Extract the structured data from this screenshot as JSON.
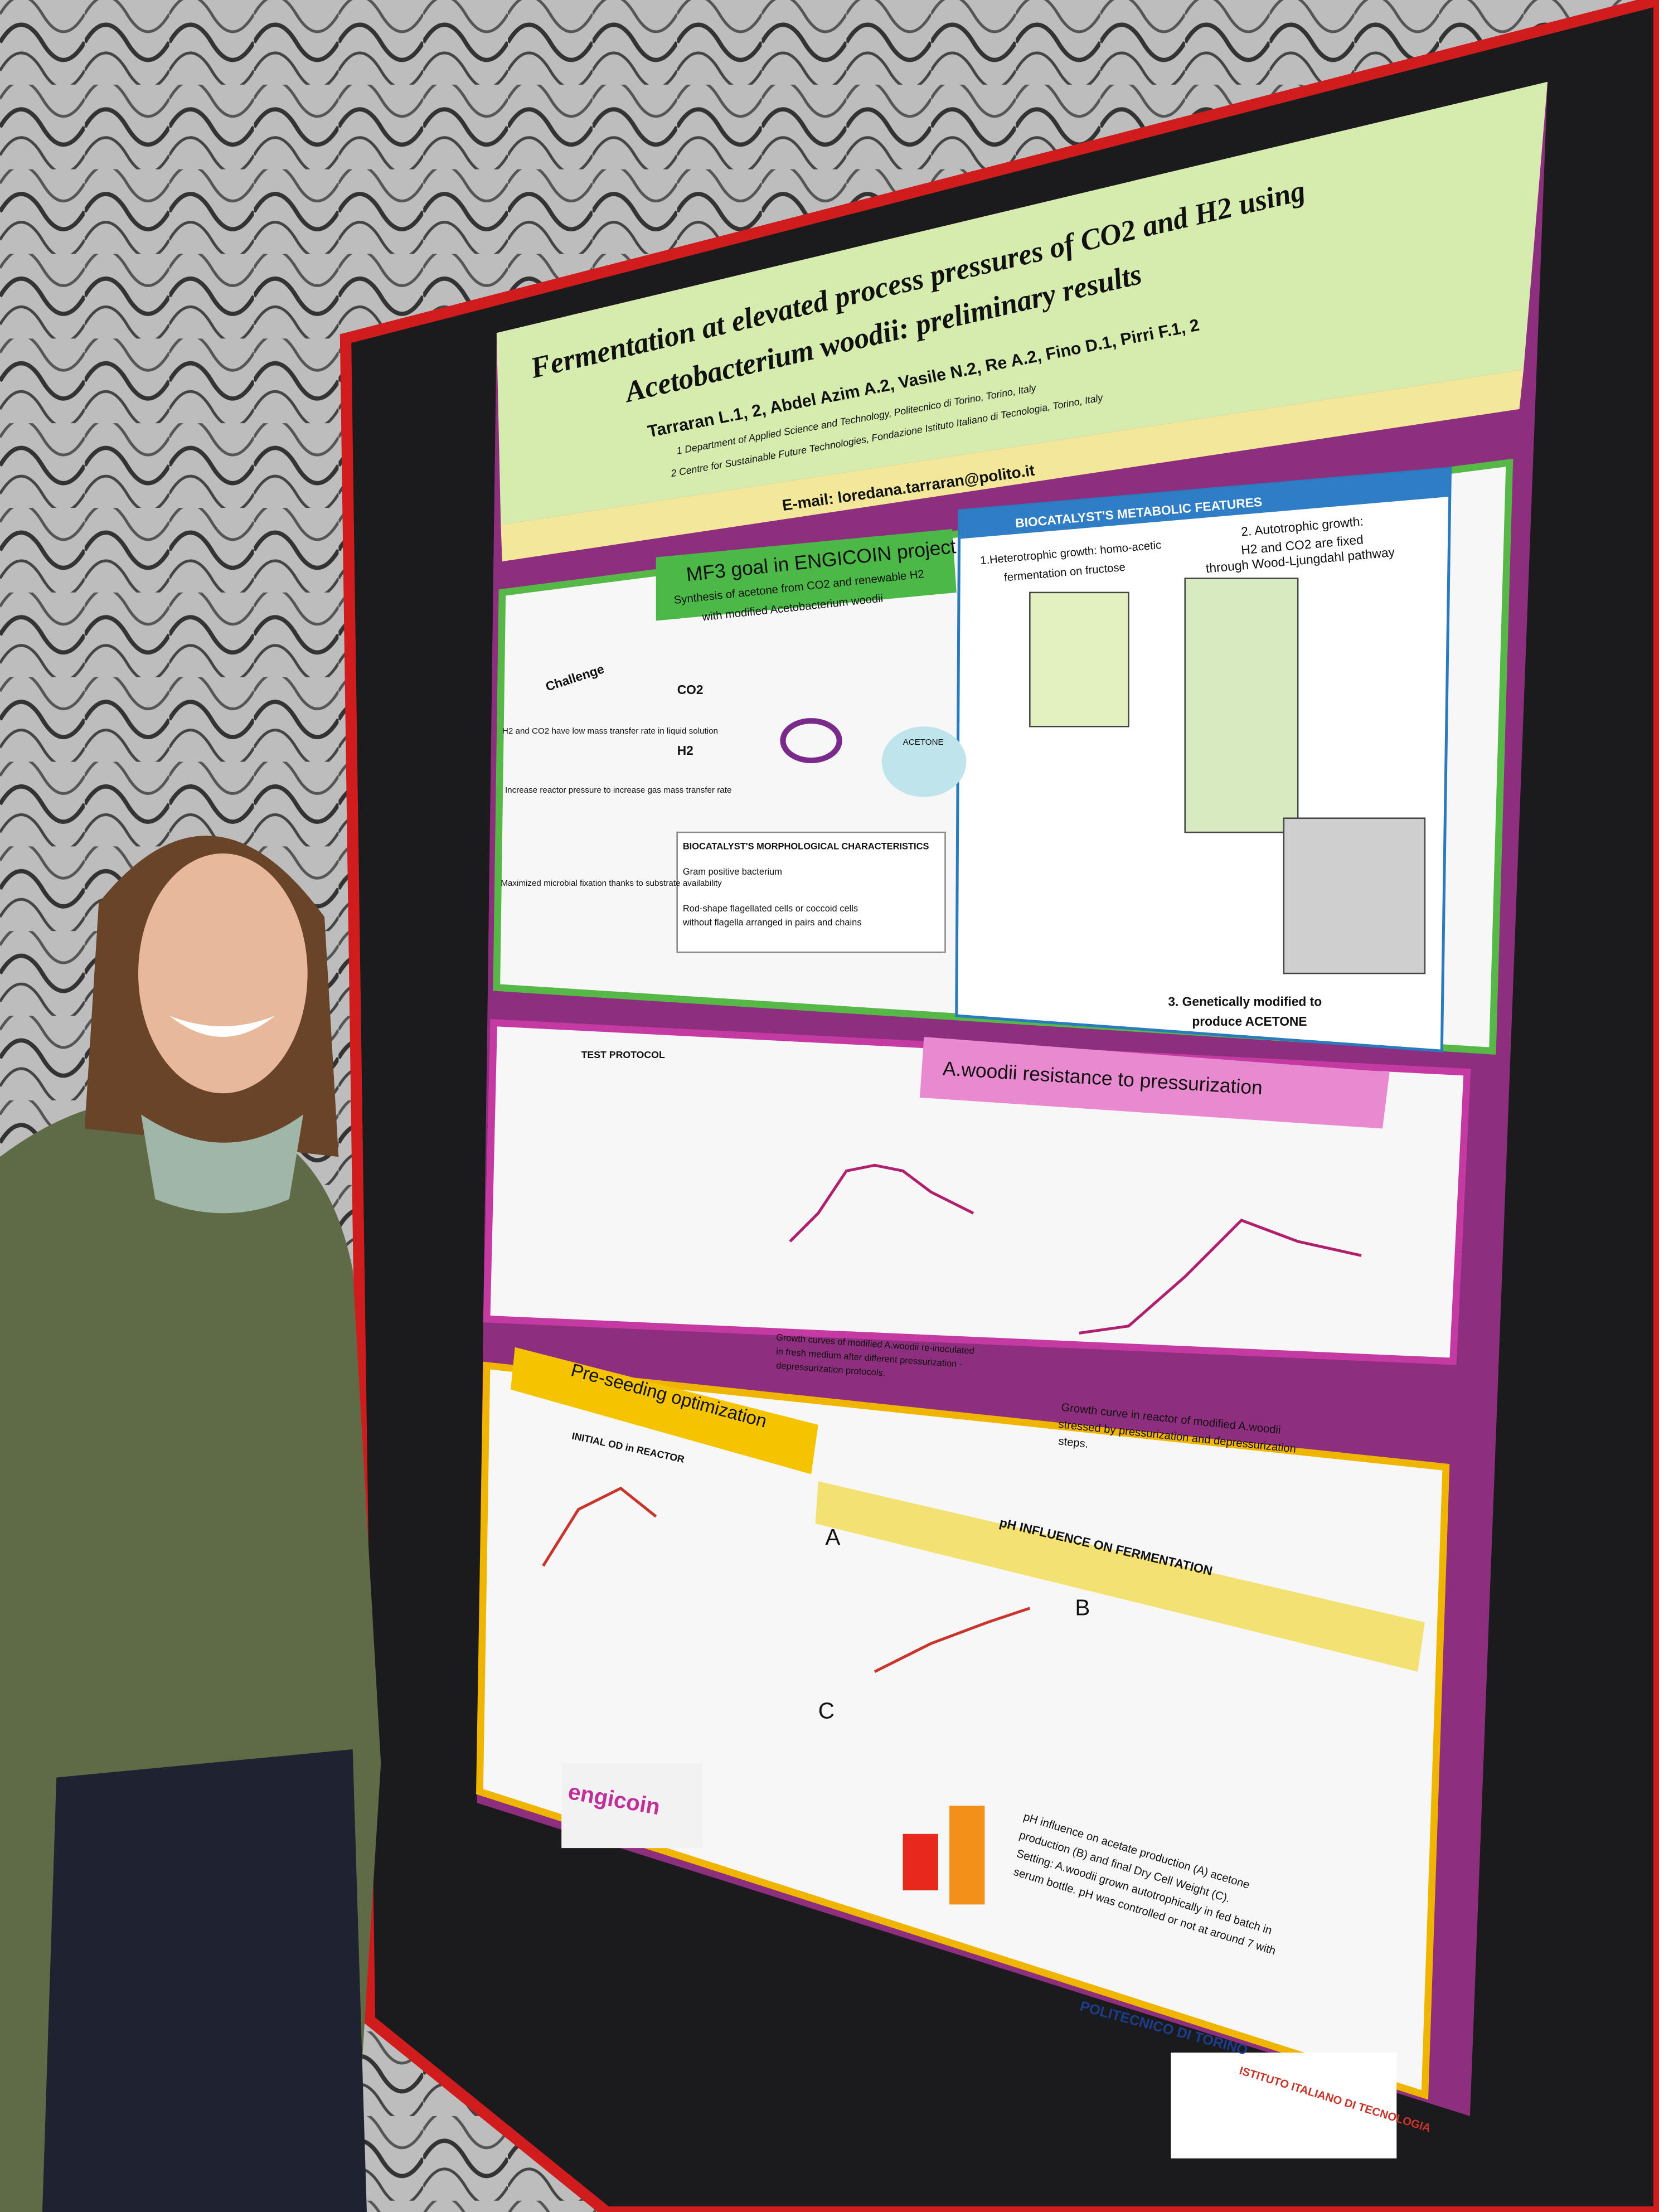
{
  "poster": {
    "title": [
      "Fermentation at elevated process pressures of CO2 and H2 using",
      "Acetobacterium woodii: preliminary results"
    ],
    "authors": "Tarraran L.1, 2, Abdel Azim A.2, Vasile N.2, Re A.2, Fino D.1, Pirri F.1, 2",
    "affiliations": [
      "1 Department of Applied Science and Technology, Politecnico di Torino, Torino, Italy",
      "2 Centre for Sustainable Future Technologies, Fondazione Istituto Italiano di Tecnologia, Torino, Italy"
    ],
    "email": "E-mail: loredana.tarraran@polito.it",
    "goal": {
      "heading": "MF3 goal in ENGICOIN project",
      "text": [
        "Synthesis of acetone from CO2 and renewable H2",
        "with modified Acetobacterium woodii"
      ]
    },
    "challenge": {
      "heading": "Challenge",
      "items": [
        "H2 and CO2 have low mass transfer rate in liquid solution",
        "Increase reactor pressure to increase gas mass transfer rate",
        "Maximized microbial fixation thanks to substrate availability"
      ],
      "labels": [
        "CO2",
        "H2",
        "ACETONE"
      ]
    },
    "morphology": {
      "heading": "BIOCATALYST'S MORPHOLOGICAL CHARACTERISTICS",
      "items": [
        "Gram positive bacterium",
        "Rod-shape flagellated cells or coccoid cells",
        "without flagella arranged in pairs and chains"
      ]
    },
    "metabolic": {
      "heading": "BIOCATALYST'S METABOLIC FEATURES",
      "heterotrophic": [
        "1.Heterotrophic growth: homo-acetic",
        "fermentation on fructose"
      ],
      "autotrophic": [
        "2. Autotrophic growth:",
        "H2 and CO2 are fixed",
        "through Wood-Ljungdahl pathway"
      ],
      "modified": [
        "3. Genetically modified to",
        "produce ACETONE"
      ]
    },
    "resistance": {
      "heading": "A.woodii resistance to pressurization",
      "protocol": "TEST PROTOCOL",
      "caption1": [
        "Growth curves of modified A.woodii re-inoculated",
        "in fresh medium after different pressurization -",
        "depressurization protocols."
      ],
      "caption2": [
        "Growth curve in reactor of modified A.woodii",
        "stressed by pressurization and depressurization",
        "steps."
      ]
    },
    "preseeding": {
      "heading": "Pre-seeding optimization",
      "chart": "INITIAL OD in REACTOR"
    },
    "ph": {
      "heading": "pH INFLUENCE ON FERMENTATION",
      "panels": [
        "A",
        "B",
        "C"
      ],
      "caption": [
        "pH influence on acetate production (A) acetone",
        "production (B) and final Dry Cell Weight (C).",
        "Setting: A.woodii grown autotrophically in fed batch in",
        "serum bottle. pH was controlled or not at around 7 with"
      ]
    },
    "logos": [
      "engicoin",
      "POLITECNICO DI TORINO",
      "ISTITUTO ITALIANO DI TECNOLOGIA"
    ]
  }
}
